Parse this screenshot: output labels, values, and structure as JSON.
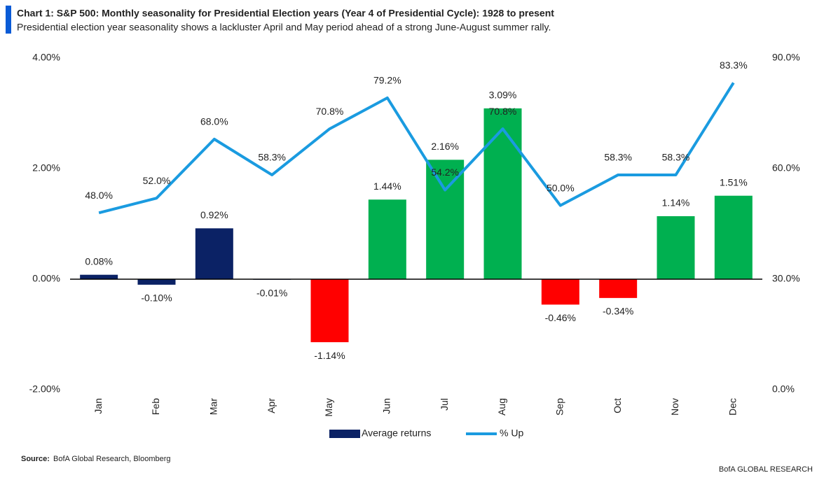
{
  "chart_data": {
    "type": "combo",
    "title": "Chart 1: S&P 500: Monthly seasonality for Presidential Election years (Year 4 of Presidential Cycle): 1928 to present",
    "subtitle": "Presidential election year seasonality shows a lackluster April and May period ahead of a strong June-August summer rally.",
    "source_label": "Source:",
    "source": "BofA Global Research, Bloomberg",
    "branding": "BofA GLOBAL RESEARCH",
    "categories": [
      "Jan",
      "Feb",
      "Mar",
      "Apr",
      "May",
      "Jun",
      "Jul",
      "Aug",
      "Sep",
      "Oct",
      "Nov",
      "Dec"
    ],
    "series": [
      {
        "name": "Average returns",
        "type": "bar",
        "color": "#0b2265",
        "colors": [
          "#0b2265",
          "#0b2265",
          "#0b2265",
          "#0b2265",
          "#ff0000",
          "#00b050",
          "#00b050",
          "#00b050",
          "#ff0000",
          "#ff0000",
          "#00b050",
          "#00b050"
        ],
        "values": [
          0.08,
          -0.1,
          0.92,
          -0.01,
          -1.14,
          1.44,
          2.16,
          3.09,
          -0.46,
          -0.34,
          1.14,
          1.51
        ],
        "value_labels": [
          "0.08%",
          "-0.10%",
          "0.92%",
          "-0.01%",
          "-1.14%",
          "1.44%",
          "2.16%",
          "3.09%",
          "-0.46%",
          "-0.34%",
          "1.14%",
          "1.51%"
        ]
      },
      {
        "name": "% Up",
        "type": "line",
        "axis": "y2",
        "color": "#1a9be0",
        "values": [
          48.0,
          52.0,
          68.0,
          58.3,
          70.8,
          79.2,
          54.2,
          70.8,
          50.0,
          58.3,
          58.3,
          83.3
        ],
        "value_labels": [
          "48.0%",
          "52.0%",
          "68.0%",
          "58.3%",
          "70.8%",
          "79.2%",
          "54.2%",
          "70.8%",
          "50.0%",
          "58.3%",
          "58.3%",
          "83.3%"
        ]
      }
    ],
    "ylim": [
      -2,
      4
    ],
    "yticks": [
      {
        "value": -2,
        "label": "-2.00%"
      },
      {
        "value": 0,
        "label": "0.00%"
      },
      {
        "value": 2,
        "label": "2.00%"
      },
      {
        "value": 4,
        "label": "4.00%"
      }
    ],
    "y2lim": [
      0,
      90
    ],
    "y2ticks": [
      {
        "value": 0,
        "label": "0.0%"
      },
      {
        "value": 30,
        "label": "30.0%"
      },
      {
        "value": 60,
        "label": "60.0%"
      },
      {
        "value": 90,
        "label": "90.0%"
      }
    ],
    "grid": false
  }
}
